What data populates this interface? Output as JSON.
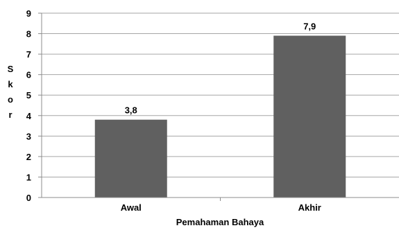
{
  "chart_data": {
    "type": "bar",
    "categories": [
      "Awal",
      "Akhir"
    ],
    "values": [
      3.8,
      7.9
    ],
    "data_labels": [
      "3,8",
      "7,9"
    ],
    "xlabel": "Pemahaman Bahaya",
    "ylabel": "Skor",
    "ylim": [
      0,
      9
    ],
    "yticks": [
      0,
      1,
      2,
      3,
      4,
      5,
      6,
      7,
      8,
      9
    ],
    "grid": true,
    "legend": "none"
  },
  "colors": {
    "bar": "#606060",
    "grid": "#a6a6a6",
    "axis": "#8c8c8c",
    "text": "#000000"
  }
}
